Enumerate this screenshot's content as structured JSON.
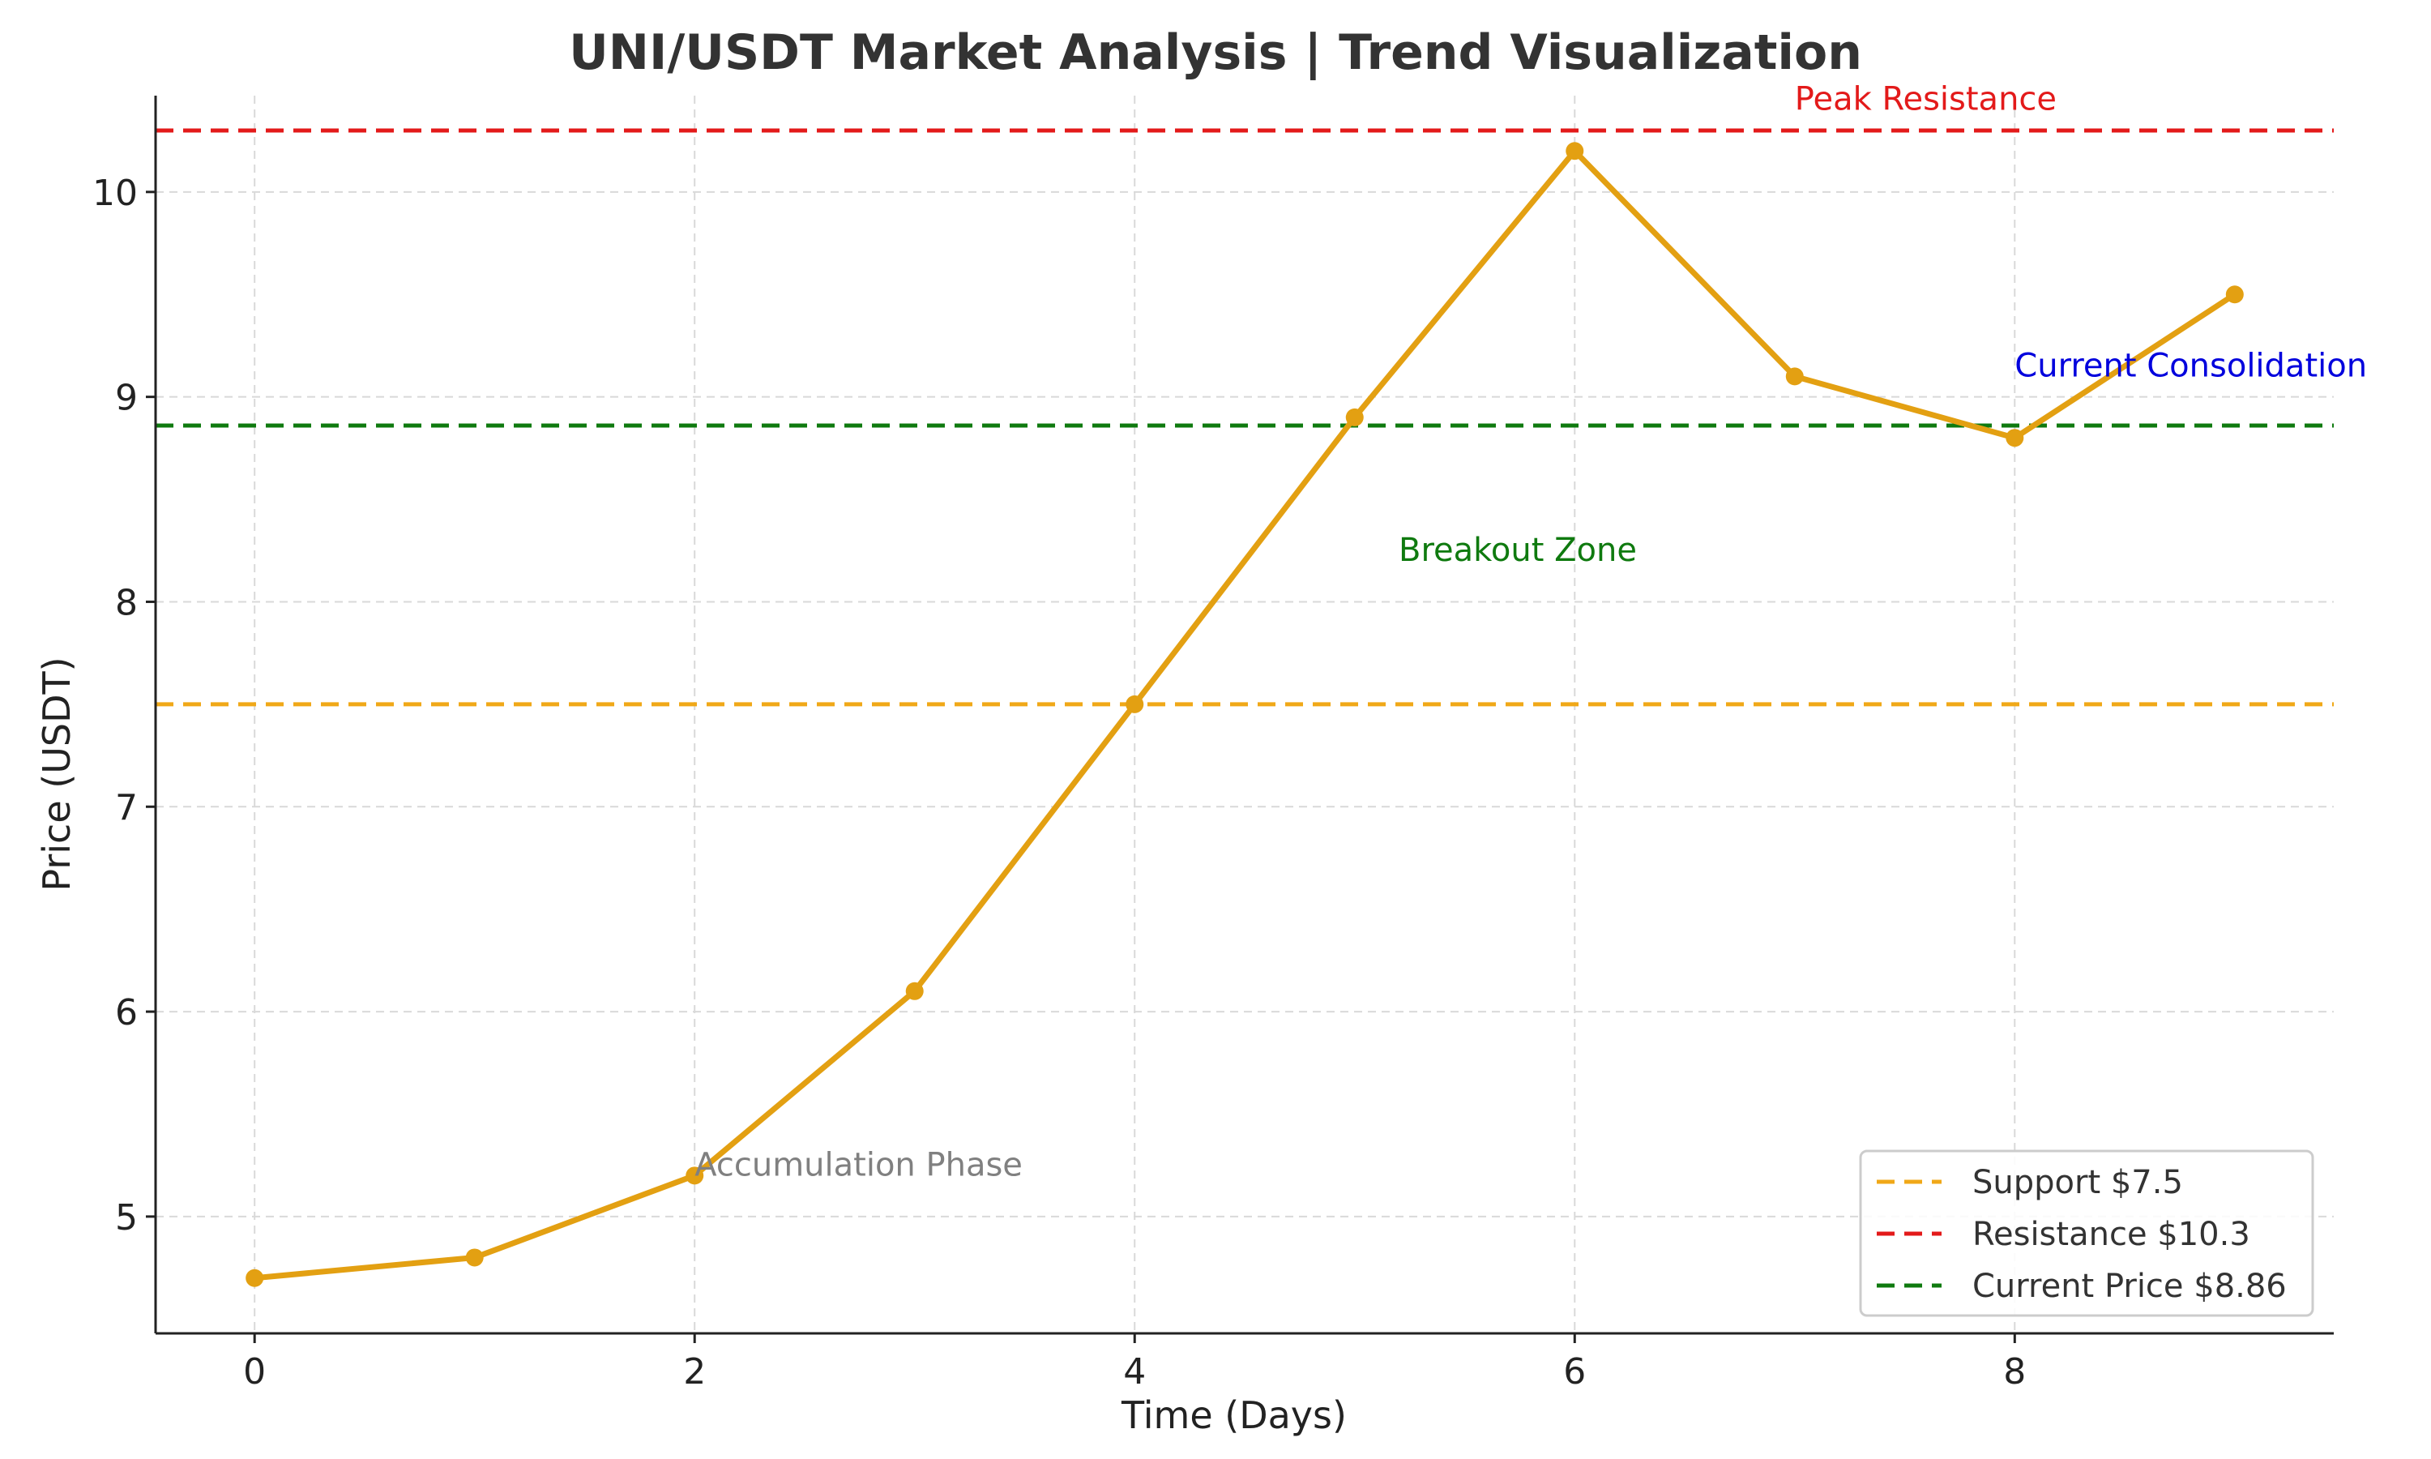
{
  "chart_data": {
    "type": "line",
    "title": "UNI/USDT Market Analysis | Trend Visualization",
    "xlabel": "Time (Days)",
    "ylabel": "Price (USDT)",
    "xlim": [
      -0.45,
      9.45
    ],
    "ylim": [
      4.43,
      10.47
    ],
    "x_ticks": [
      0,
      2,
      4,
      6,
      8
    ],
    "y_ticks": [
      5,
      6,
      7,
      8,
      9,
      10
    ],
    "grid": true,
    "legend_position": "lower-right",
    "series": [
      {
        "color": "#e3a012",
        "x": [
          0,
          1,
          2,
          3,
          4,
          5,
          6,
          7,
          8,
          9
        ],
        "values": [
          4.7,
          4.8,
          5.2,
          6.1,
          7.5,
          8.9,
          10.2,
          9.1,
          8.8,
          9.5
        ]
      }
    ],
    "reference_lines": [
      {
        "name": "Support $7.5",
        "y": 7.5,
        "color": "#f0a818"
      },
      {
        "name": "Resistance $10.3",
        "y": 10.3,
        "color": "#e31a1a"
      },
      {
        "name": "Current Price $8.86",
        "y": 8.86,
        "color": "#0f7a0f"
      }
    ],
    "annotations": [
      {
        "text": "Peak Resistance",
        "x": 7.0,
        "y": 10.4,
        "color": "#e31a1a"
      },
      {
        "text": "Current Consolidation",
        "x": 8.0,
        "y": 9.1,
        "color": "#0000dd"
      },
      {
        "text": "Breakout Zone",
        "x": 5.2,
        "y": 8.2,
        "color": "#0f7a0f"
      },
      {
        "text": "Accumulation Phase",
        "x": 2.0,
        "y": 5.2,
        "color": "#808080"
      }
    ]
  }
}
